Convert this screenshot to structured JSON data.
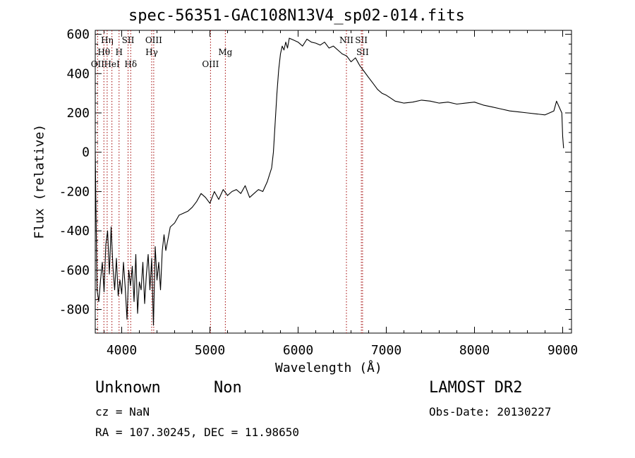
{
  "chart_data": {
    "type": "line",
    "title": "spec-56351-GAC108N13V4_sp02-014.fits",
    "xlabel": "Wavelength (Å)",
    "ylabel": "Flux (relative)",
    "xlim": [
      3700,
      9100
    ],
    "ylim": [
      -920,
      620
    ],
    "xticks": [
      4000,
      5000,
      6000,
      7000,
      8000,
      9000
    ],
    "yticks": [
      -800,
      -600,
      -400,
      -200,
      0,
      200,
      400,
      600
    ],
    "grid": false,
    "series": [
      {
        "x": [
          3700,
          3720,
          3740,
          3760,
          3780,
          3800,
          3820,
          3840,
          3860,
          3880,
          3900,
          3920,
          3940,
          3960,
          3980,
          4000,
          4020,
          4040,
          4060,
          4080,
          4100,
          4120,
          4140,
          4160,
          4180,
          4200,
          4220,
          4240,
          4260,
          4280,
          4300,
          4320,
          4340,
          4360,
          4380,
          4400,
          4420,
          4440,
          4460,
          4480,
          4500,
          4550,
          4600,
          4650,
          4700,
          4750,
          4800,
          4850,
          4900,
          4950,
          5000,
          5050,
          5100,
          5150,
          5200,
          5250,
          5300,
          5350,
          5400,
          5450,
          5500,
          5550,
          5600,
          5650,
          5700,
          5720,
          5740,
          5760,
          5780,
          5800,
          5820,
          5840,
          5860,
          5880,
          5900,
          5950,
          6000,
          6050,
          6100,
          6150,
          6200,
          6250,
          6300,
          6350,
          6400,
          6450,
          6500,
          6550,
          6600,
          6650,
          6700,
          6750,
          6800,
          6850,
          6900,
          6950,
          7000,
          7050,
          7100,
          7150,
          7200,
          7300,
          7400,
          7500,
          7600,
          7700,
          7800,
          7900,
          8000,
          8100,
          8200,
          8300,
          8400,
          8500,
          8600,
          8700,
          8800,
          8850,
          8900,
          8930,
          8960,
          8990,
          9000,
          9010
        ],
        "y": [
          0,
          -700,
          -760,
          -650,
          -560,
          -710,
          -470,
          -400,
          -620,
          -380,
          -580,
          -700,
          -540,
          -730,
          -650,
          -720,
          -560,
          -690,
          -850,
          -600,
          -680,
          -580,
          -760,
          -520,
          -820,
          -660,
          -700,
          -560,
          -770,
          -620,
          -520,
          -700,
          -540,
          -880,
          -480,
          -650,
          -560,
          -700,
          -500,
          -420,
          -500,
          -380,
          -360,
          -320,
          -310,
          -300,
          -280,
          -250,
          -210,
          -230,
          -260,
          -200,
          -240,
          -190,
          -220,
          -200,
          -190,
          -210,
          -170,
          -230,
          -210,
          -190,
          -200,
          -150,
          -80,
          0,
          150,
          300,
          420,
          500,
          540,
          520,
          560,
          530,
          580,
          570,
          560,
          540,
          575,
          560,
          555,
          545,
          560,
          530,
          540,
          520,
          500,
          490,
          460,
          480,
          440,
          410,
          380,
          350,
          320,
          300,
          290,
          275,
          260,
          255,
          250,
          255,
          265,
          260,
          250,
          255,
          245,
          250,
          255,
          240,
          230,
          220,
          210,
          205,
          200,
          195,
          190,
          200,
          210,
          260,
          230,
          200,
          80,
          20
        ]
      }
    ],
    "lines": [
      {
        "label": "OII",
        "x": 3727,
        "row": 3
      },
      {
        "label": "Hθ",
        "x": 3798,
        "row": 2
      },
      {
        "label": "Hη",
        "x": 3835,
        "row": 1
      },
      {
        "label": "HeI",
        "x": 3889,
        "row": 3
      },
      {
        "label": "SII",
        "x": 4072,
        "row": 1
      },
      {
        "label": "H",
        "x": 3970,
        "row": 2
      },
      {
        "label": "Hδ",
        "x": 4102,
        "row": 3
      },
      {
        "label": "OIII",
        "x": 4363,
        "row": 1
      },
      {
        "label": "Hγ",
        "x": 4340,
        "row": 2
      },
      {
        "label": "OIII",
        "x": 5007,
        "row": 3
      },
      {
        "label": "Mg",
        "x": 5175,
        "row": 2
      },
      {
        "label": "NII",
        "x": 6548,
        "row": 1
      },
      {
        "label": "SII",
        "x": 6717,
        "row": 1
      },
      {
        "label": "SII",
        "x": 6731,
        "row": 2
      }
    ]
  },
  "footer": {
    "left_big_1": "Unknown",
    "left_big_2": "Non",
    "cz": "cz = NaN",
    "radec": "RA = 107.30245, DEC =  11.98650",
    "right_big": "LAMOST DR2",
    "obs_date": "Obs-Date: 20130227"
  }
}
